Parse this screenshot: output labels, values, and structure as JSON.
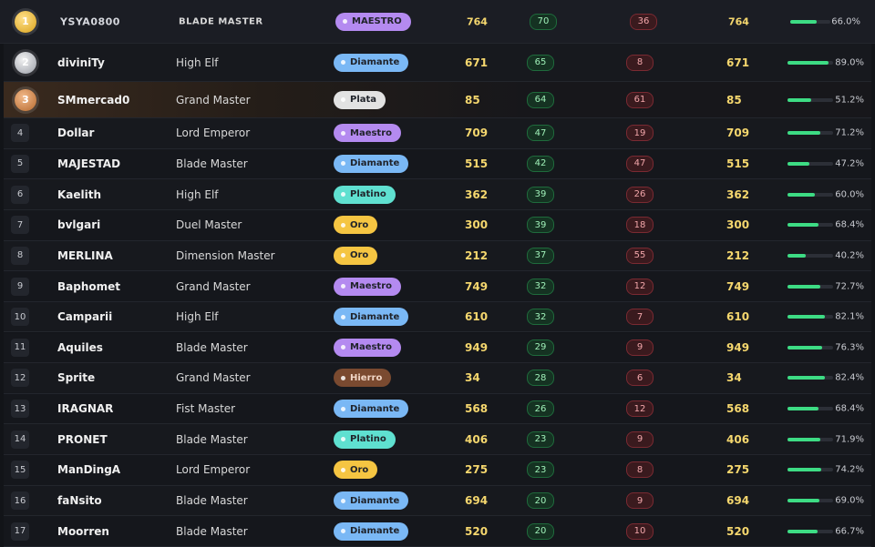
{
  "leaderboard": {
    "rows": [
      {
        "rank": 1,
        "name": "YSYA0800",
        "class": "BLADE MASTER",
        "tier": {
          "label": "MAESTRO",
          "color": "#b48af0"
        },
        "points": 764,
        "wins": 70,
        "losses": 36,
        "total": 764,
        "rate": {
          "value": 66.0,
          "label": "66.0%"
        }
      },
      {
        "rank": 2,
        "name": "diviniTy",
        "class": "High Elf",
        "tier": {
          "label": "Diamante",
          "color": "#7ab8f5"
        },
        "points": 671,
        "wins": 65,
        "losses": 8,
        "total": 671,
        "rate": {
          "value": 89.0,
          "label": "89.0%"
        }
      },
      {
        "rank": 3,
        "name": "SMmercad0",
        "class": "Grand Master",
        "tier": {
          "label": "Plata",
          "color": "#e2e2e2"
        },
        "points": 85,
        "wins": 64,
        "losses": 61,
        "total": 85,
        "rate": {
          "value": 51.2,
          "label": "51.2%"
        }
      },
      {
        "rank": 4,
        "name": "Dollar",
        "class": "Lord Emperor",
        "tier": {
          "label": "Maestro",
          "color": "#b48af0"
        },
        "points": 709,
        "wins": 47,
        "losses": 19,
        "total": 709,
        "rate": {
          "value": 71.2,
          "label": "71.2%"
        }
      },
      {
        "rank": 5,
        "name": "MAJESTAD",
        "class": "Blade Master",
        "tier": {
          "label": "Diamante",
          "color": "#7ab8f5"
        },
        "points": 515,
        "wins": 42,
        "losses": 47,
        "total": 515,
        "rate": {
          "value": 47.2,
          "label": "47.2%"
        }
      },
      {
        "rank": 6,
        "name": "Kaelith",
        "class": "High Elf",
        "tier": {
          "label": "Platino",
          "color": "#5fe0d0"
        },
        "points": 362,
        "wins": 39,
        "losses": 26,
        "total": 362,
        "rate": {
          "value": 60.0,
          "label": "60.0%"
        }
      },
      {
        "rank": 7,
        "name": "bvlgari",
        "class": "Duel Master",
        "tier": {
          "label": "Oro",
          "color": "#f5c542"
        },
        "points": 300,
        "wins": 39,
        "losses": 18,
        "total": 300,
        "rate": {
          "value": 68.4,
          "label": "68.4%"
        }
      },
      {
        "rank": 8,
        "name": "MERLINA",
        "class": "Dimension Master",
        "tier": {
          "label": "Oro",
          "color": "#f5c542"
        },
        "points": 212,
        "wins": 37,
        "losses": 55,
        "total": 212,
        "rate": {
          "value": 40.2,
          "label": "40.2%"
        }
      },
      {
        "rank": 9,
        "name": "Baphomet",
        "class": "Grand Master",
        "tier": {
          "label": "Maestro",
          "color": "#b48af0"
        },
        "points": 749,
        "wins": 32,
        "losses": 12,
        "total": 749,
        "rate": {
          "value": 72.7,
          "label": "72.7%"
        }
      },
      {
        "rank": 10,
        "name": "Camparii",
        "class": "High Elf",
        "tier": {
          "label": "Diamante",
          "color": "#7ab8f5"
        },
        "points": 610,
        "wins": 32,
        "losses": 7,
        "total": 610,
        "rate": {
          "value": 82.1,
          "label": "82.1%"
        }
      },
      {
        "rank": 11,
        "name": "Aquiles",
        "class": "Blade Master",
        "tier": {
          "label": "Maestro",
          "color": "#b48af0"
        },
        "points": 949,
        "wins": 29,
        "losses": 9,
        "total": 949,
        "rate": {
          "value": 76.3,
          "label": "76.3%"
        }
      },
      {
        "rank": 12,
        "name": "Sprite",
        "class": "Grand Master",
        "tier": {
          "label": "Hierro",
          "color": "#7a4a30"
        },
        "points": 34,
        "wins": 28,
        "losses": 6,
        "total": 34,
        "rate": {
          "value": 82.4,
          "label": "82.4%"
        }
      },
      {
        "rank": 13,
        "name": "IRAGNAR",
        "class": "Fist Master",
        "tier": {
          "label": "Diamante",
          "color": "#7ab8f5"
        },
        "points": 568,
        "wins": 26,
        "losses": 12,
        "total": 568,
        "rate": {
          "value": 68.4,
          "label": "68.4%"
        }
      },
      {
        "rank": 14,
        "name": "PRONET",
        "class": "Blade Master",
        "tier": {
          "label": "Platino",
          "color": "#5fe0d0"
        },
        "points": 406,
        "wins": 23,
        "losses": 9,
        "total": 406,
        "rate": {
          "value": 71.9,
          "label": "71.9%"
        }
      },
      {
        "rank": 15,
        "name": "ManDingA",
        "class": "Lord Emperor",
        "tier": {
          "label": "Oro",
          "color": "#f5c542"
        },
        "points": 275,
        "wins": 23,
        "losses": 8,
        "total": 275,
        "rate": {
          "value": 74.2,
          "label": "74.2%"
        }
      },
      {
        "rank": 16,
        "name": "faNsito",
        "class": "Blade Master",
        "tier": {
          "label": "Diamante",
          "color": "#7ab8f5"
        },
        "points": 694,
        "wins": 20,
        "losses": 9,
        "total": 694,
        "rate": {
          "value": 69.0,
          "label": "69.0%"
        }
      },
      {
        "rank": 17,
        "name": "Moorren",
        "class": "Blade Master",
        "tier": {
          "label": "Diamante",
          "color": "#7ab8f5"
        },
        "points": 520,
        "wins": 20,
        "losses": 10,
        "total": 520,
        "rate": {
          "value": 66.7,
          "label": "66.7%"
        }
      }
    ]
  }
}
